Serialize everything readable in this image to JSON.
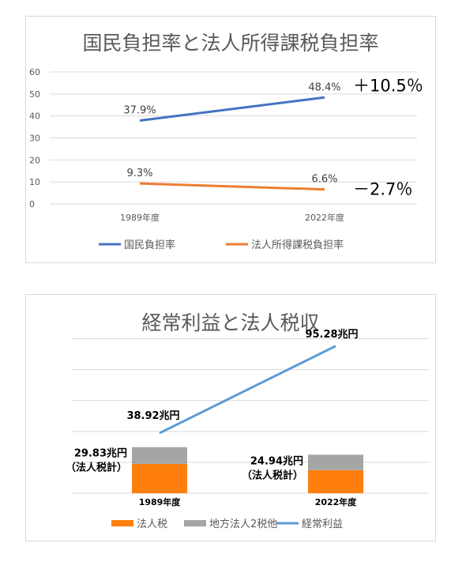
{
  "chart_data": [
    {
      "type": "line",
      "title": "国民負担率と法人所得課税負担率",
      "categories": [
        "1989年度",
        "2022年度"
      ],
      "ylim": [
        0,
        60
      ],
      "yticks": [
        "0",
        "10",
        "20",
        "30",
        "40",
        "50",
        "60"
      ],
      "grid": true,
      "legend_position": "bottom",
      "series": [
        {
          "name": "国民負担率",
          "values": [
            37.9,
            48.4
          ],
          "labels": [
            "37.9%",
            "48.4%"
          ],
          "color": "#4472C4",
          "change": "＋10.5％"
        },
        {
          "name": "法人所得課税負担率",
          "values": [
            9.3,
            6.6
          ],
          "labels": [
            "9.3%",
            "6.6%"
          ],
          "color": "#ED7D31",
          "change": "－2.7％"
        }
      ]
    },
    {
      "type": "bar",
      "title": "経常利益と法人税収",
      "categories": [
        "1989年度",
        "2022年度"
      ],
      "ylim": [
        0,
        110
      ],
      "grid": true,
      "legend_position": "bottom",
      "stacked_series": [
        {
          "name": "法人税",
          "values": [
            18.99,
            14.94
          ],
          "color": "#FF7F0E"
        },
        {
          "name": "地方法人2税他",
          "values": [
            10.84,
            10.0
          ],
          "color": "#A5A5A5"
        }
      ],
      "bar_totals": [
        [
          "29.83兆円",
          "（法人税計）"
        ],
        [
          "24.94兆円",
          "（法人税計）"
        ]
      ],
      "line_series": {
        "name": "経常利益",
        "values": [
          38.92,
          95.28
        ],
        "labels": [
          "38.92兆円",
          "95.28兆円"
        ],
        "color": "#5B9BD5"
      }
    }
  ]
}
